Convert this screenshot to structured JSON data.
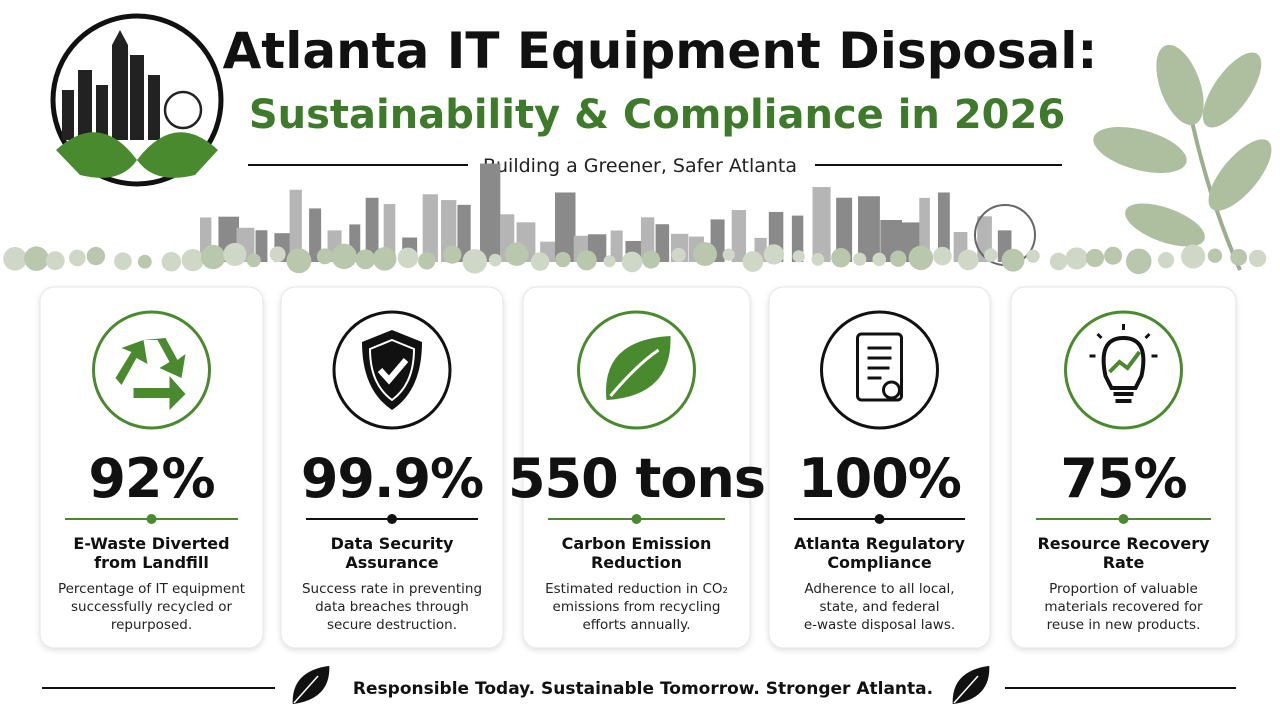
{
  "header": {
    "title": "Atlanta IT Equipment Disposal:",
    "subtitle": "Sustainability & Compliance in 2026",
    "tagline": "Building a Greener, Safer Atlanta"
  },
  "cards": [
    {
      "value": "92%",
      "title": [
        "E-Waste Diverted",
        "from Landfill"
      ],
      "description": [
        "Percentage of IT equipment",
        "successfully recycled or",
        "repurposed."
      ]
    },
    {
      "value": "99.9%",
      "title": [
        "Data Security",
        "Assurance"
      ],
      "description": [
        "Success rate in preventing",
        "data breaches through",
        "secure destruction."
      ]
    },
    {
      "value": "550 tons",
      "title": [
        "Carbon Emission",
        "Reduction"
      ],
      "description": [
        "Estimated reduction in CO₂",
        "emissions from recycling",
        "efforts annually."
      ]
    },
    {
      "value": "100%",
      "title": [
        "Atlanta Regulatory",
        "Compliance"
      ],
      "description": [
        "Adherence to all local,",
        "state, and federal",
        "e-waste disposal laws."
      ]
    },
    {
      "value": "75%",
      "title": [
        "Resource Recovery",
        "Rate"
      ],
      "description": [
        "Proportion of valuable",
        "materials recovered for",
        "reuse in new products."
      ]
    }
  ],
  "footer": {
    "slogan": "Responsible Today.  Sustainable Tomorrow. Stronger Atlanta."
  }
}
